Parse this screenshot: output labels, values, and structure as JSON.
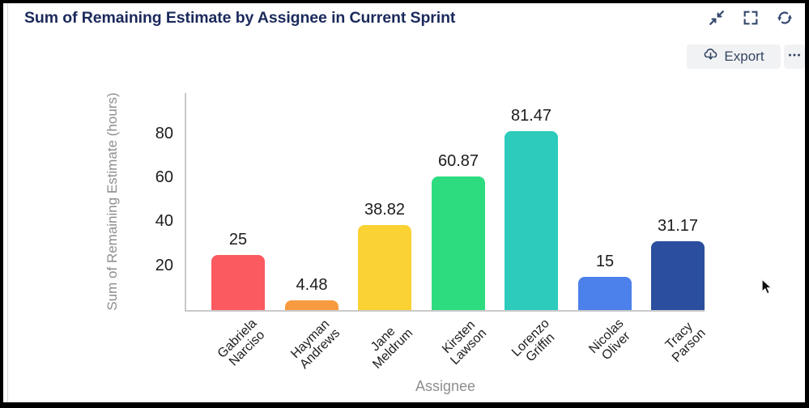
{
  "header": {
    "title": "Sum of Remaining Estimate by Assignee in Current Sprint"
  },
  "toolbar": {
    "export_label": "Export",
    "icons": [
      "collapse-icon",
      "fullscreen-icon",
      "refresh-icon",
      "cloud-download-icon",
      "more-options-icon"
    ]
  },
  "colors": {
    "title_text": "#1b2a5c",
    "toolbar_text": "#344563",
    "toolbar_button_bg": "#f1f2f4",
    "axis_line": "#c9c9c9",
    "axis_title_text": "#8e8e8e",
    "label_text": "#1c1c1c"
  },
  "chart_data": {
    "type": "bar",
    "title": "Sum of Remaining Estimate by Assignee in Current Sprint",
    "xlabel": "Assignee",
    "ylabel": "Sum of Remaining Estimate (hours)",
    "categories": [
      "Gabriela Narciso",
      "Hayman Andrews",
      "Jane Meldrum",
      "Kirsten Lawson",
      "Lorenzo Griffin",
      "Nicolas Oliver",
      "Tracy Parson"
    ],
    "values": [
      25,
      4.48,
      38.82,
      60.87,
      81.47,
      15,
      31.17
    ],
    "value_labels": [
      "25",
      "4.48",
      "38.82",
      "60.87",
      "81.47",
      "15",
      "31.17"
    ],
    "bar_colors": [
      "#FA5A60",
      "#F89B40",
      "#FBD233",
      "#2EDC80",
      "#2CCBBB",
      "#4C80EA",
      "#2B4F9E"
    ],
    "yticks": [
      20,
      40,
      60,
      80
    ],
    "ylim": [
      0,
      98.8
    ],
    "grid": false,
    "legend": false
  }
}
